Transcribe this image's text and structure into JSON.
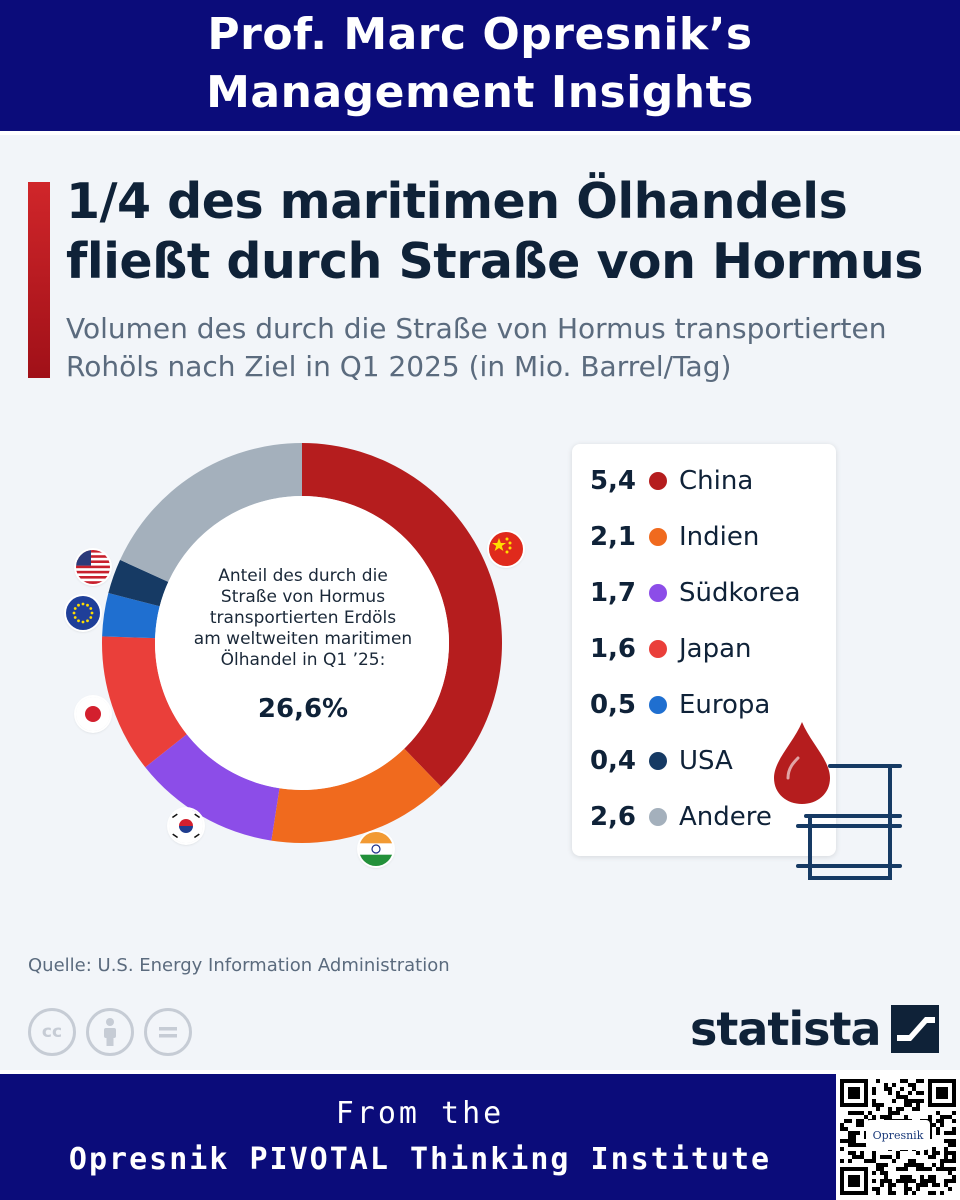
{
  "banner_top": {
    "line1": "Prof. Marc Opresnik’s",
    "line2": "Management Insights"
  },
  "title_line1": "1/4 des maritimen Ölhandels",
  "title_line2": "fließt durch Straße von Hormus",
  "subtitle_line1": "Volumen des durch die Straße von Hormus transportierten",
  "subtitle_line2": "Rohöls nach Ziel in Q1 2025 (in Mio. Barrel/Tag)",
  "center": {
    "lines": [
      "Anteil des durch die",
      "Straße von Hormus",
      "transportierten Erdöls",
      "am weltweiten maritimen",
      "Ölhandel in Q1 ’25:"
    ],
    "value": "26,6%"
  },
  "chart_data": {
    "type": "pie",
    "variant": "donut",
    "title": "1/4 des maritimen Ölhandels fließt durch Straße von Hormus",
    "subtitle": "Volumen des durch die Straße von Hormus transportierten Rohöls nach Ziel in Q1 2025 (in Mio. Barrel/Tag)",
    "categories": [
      "China",
      "Indien",
      "Südkorea",
      "Japan",
      "Europa",
      "USA",
      "Andere"
    ],
    "values": [
      5.4,
      2.1,
      1.7,
      1.6,
      0.5,
      0.4,
      2.6
    ],
    "value_labels": [
      "5,4",
      "2,1",
      "1,7",
      "1,6",
      "0,5",
      "0,4",
      "2,6"
    ],
    "colors": [
      "#b51d1e",
      "#f06a1e",
      "#8c4de8",
      "#ea3f3a",
      "#1f6fd0",
      "#163a64",
      "#a4b0bc"
    ],
    "center_annotation": "Anteil des durch die Straße von Hormus transportierten Erdöls am weltweiten maritimen Ölhandel in Q1 ’25: 26,6%",
    "legend_position": "right"
  },
  "flags": [
    "china-flag-icon",
    "india-flag-icon",
    "south-korea-flag-icon",
    "japan-flag-icon",
    "eu-flag-icon",
    "usa-flag-icon"
  ],
  "source": "Quelle: U.S. Energy Information Administration",
  "cc_icons": [
    "cc",
    "by-person",
    "nd-equals"
  ],
  "brand": "statista",
  "banner_bottom": {
    "line1": "From the",
    "line2": "Opresnik PIVOTAL Thinking Institute"
  },
  "qr_seal": "Opresnik"
}
